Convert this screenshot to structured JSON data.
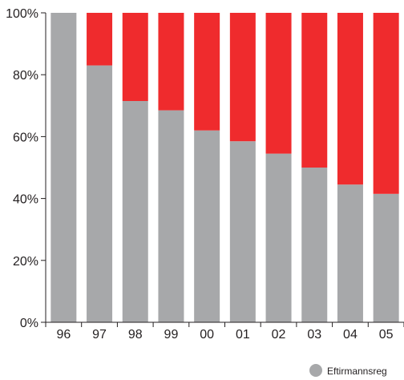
{
  "chart_data": {
    "type": "bar",
    "stacked": true,
    "categories": [
      "96",
      "97",
      "98",
      "99",
      "00",
      "01",
      "02",
      "03",
      "04",
      "05"
    ],
    "series": [
      {
        "name": "Eftirmannsreg",
        "color": "#a7a8aa",
        "values": [
          100,
          83,
          71.5,
          68.5,
          62,
          58.5,
          54.5,
          50,
          44.5,
          41.5
        ]
      },
      {
        "color": "#ef2b2d",
        "values": [
          0,
          17,
          28.5,
          31.5,
          38,
          41.5,
          45.5,
          50,
          55.5,
          58.5
        ]
      }
    ],
    "ylim": [
      0,
      100
    ],
    "yticks": [
      "0%",
      "20%",
      "40%",
      "60%",
      "80%",
      "100%"
    ],
    "ytick_values": [
      0,
      20,
      40,
      60,
      80,
      100
    ],
    "grid": false,
    "legend_position": "bottom-right"
  }
}
